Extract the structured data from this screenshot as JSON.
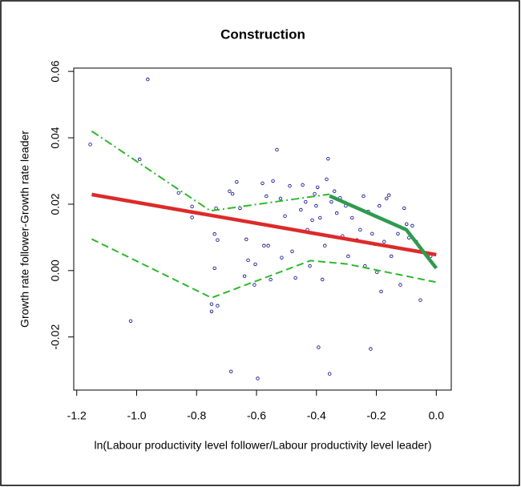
{
  "chart_data": {
    "type": "scatter",
    "title": "Construction",
    "xlabel": "ln(Labour productivity level follower/Labour productivity level leader)",
    "ylabel": "Growth rate follower-Growth rate leader",
    "xlim": [
      -1.21,
      0.05
    ],
    "ylim": [
      -0.036,
      0.061
    ],
    "xticks": [
      -1.2,
      {
        "value": -1.0,
        "label": "-1.0"
      },
      -0.8,
      -0.6,
      -0.4,
      -0.2,
      {
        "value": 0,
        "label": "0.0"
      }
    ],
    "yticks": [
      -0.02,
      {
        "value": 0,
        "label": "0.00"
      },
      0.02,
      0.04,
      0.06
    ],
    "layers": [
      {
        "type": "scatter",
        "color": "#00008b",
        "x": [
          -1.155,
          -0.963,
          -0.99,
          -1.02,
          -0.815,
          -0.815,
          -0.86,
          -0.735,
          -0.74,
          -0.73,
          -0.74,
          -0.75,
          -0.75,
          -0.73,
          -0.685,
          -0.666,
          -0.69,
          -0.68,
          -0.655,
          -0.634,
          -0.628,
          -0.64,
          -0.607,
          -0.596,
          -0.604,
          -0.58,
          -0.567,
          -0.575,
          -0.561,
          -0.553,
          -0.545,
          -0.532,
          -0.52,
          -0.516,
          -0.505,
          -0.489,
          -0.481,
          -0.47,
          -0.452,
          -0.446,
          -0.436,
          -0.43,
          -0.422,
          -0.414,
          -0.406,
          -0.401,
          -0.396,
          -0.393,
          -0.388,
          -0.38,
          -0.372,
          -0.366,
          -0.361,
          -0.356,
          -0.35,
          -0.34,
          -0.332,
          -0.321,
          -0.313,
          -0.302,
          -0.294,
          -0.281,
          -0.265,
          -0.254,
          -0.243,
          -0.238,
          -0.227,
          -0.219,
          -0.214,
          -0.206,
          -0.198,
          -0.19,
          -0.184,
          -0.174,
          -0.166,
          -0.158,
          -0.15,
          -0.139,
          -0.128,
          -0.12,
          -0.107,
          -0.099,
          -0.091,
          -0.08,
          -0.067,
          -0.053,
          -0.019
        ],
        "values": [
          0.038,
          0.0576,
          0.0335,
          -0.0152,
          0.0193,
          0.016,
          0.0234,
          0.0188,
          0.011,
          0.0092,
          0.0007,
          -0.0101,
          -0.0123,
          -0.0106,
          -0.0304,
          0.0267,
          0.0239,
          0.0231,
          0.0188,
          0.0094,
          0.0031,
          -0.0017,
          -0.0043,
          -0.0325,
          0.0019,
          0.0263,
          0.0224,
          0.0075,
          0.0075,
          -0.0027,
          0.027,
          0.0364,
          0.0217,
          0.0039,
          0.0164,
          0.0255,
          0.0058,
          -0.0022,
          0.0183,
          0.0258,
          0.0207,
          0.0123,
          0.0014,
          0.0152,
          0.0231,
          0.0195,
          0.0251,
          -0.0231,
          0.0159,
          -0.0027,
          0.0075,
          0.0275,
          0.0337,
          -0.0311,
          0.0207,
          0.0239,
          0.0173,
          0.0219,
          0.0104,
          0.0195,
          0.0043,
          0.0159,
          0.0092,
          0.0123,
          0.0224,
          0.0014,
          0.0178,
          -0.0236,
          0.0111,
          0.008,
          -0.0005,
          0.0195,
          -0.0063,
          0.0087,
          0.0217,
          0.0227,
          0.0043,
          0.007,
          0.0111,
          -0.0043,
          0.0188,
          0.014,
          0.0099,
          0.0135,
          0.0087,
          -0.0089,
          0.0043
        ]
      },
      {
        "type": "line",
        "color": "#2db82d",
        "linestyle": "dashdot",
        "x": [
          -1.15,
          -0.754,
          -0.356
        ],
        "values": [
          0.042,
          0.018,
          0.023
        ]
      },
      {
        "type": "line",
        "color": "#2db82d",
        "linestyle": "dashed",
        "x": [
          -1.15,
          -0.75,
          -0.42,
          -0.3,
          0
        ],
        "values": [
          0.0095,
          -0.0082,
          0.003,
          0.002,
          -0.0035
        ]
      },
      {
        "type": "line",
        "color": "#dd2a2a",
        "linestyle": "solid",
        "x": [
          -1.15,
          0
        ],
        "values": [
          0.0229,
          0.0048
        ]
      },
      {
        "type": "line",
        "color": "#2e9b4e",
        "linestyle": "solid",
        "x": [
          -0.356,
          -0.1,
          0
        ],
        "values": [
          0.0225,
          0.0123,
          0.0007
        ]
      }
    ]
  }
}
